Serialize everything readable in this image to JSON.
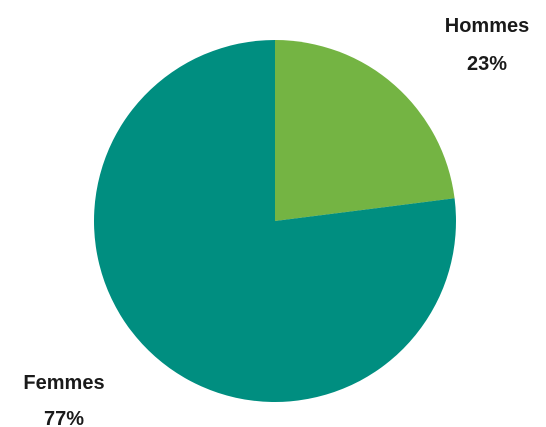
{
  "chart_data": {
    "type": "pie",
    "slices": [
      {
        "name": "Hommes",
        "value": 23,
        "label": "23%",
        "color": "#74b443"
      },
      {
        "name": "Femmes",
        "value": 77,
        "label": "77%",
        "color": "#008e80"
      }
    ],
    "start_angle_deg": 0,
    "direction": "clockwise",
    "legend": "none"
  }
}
